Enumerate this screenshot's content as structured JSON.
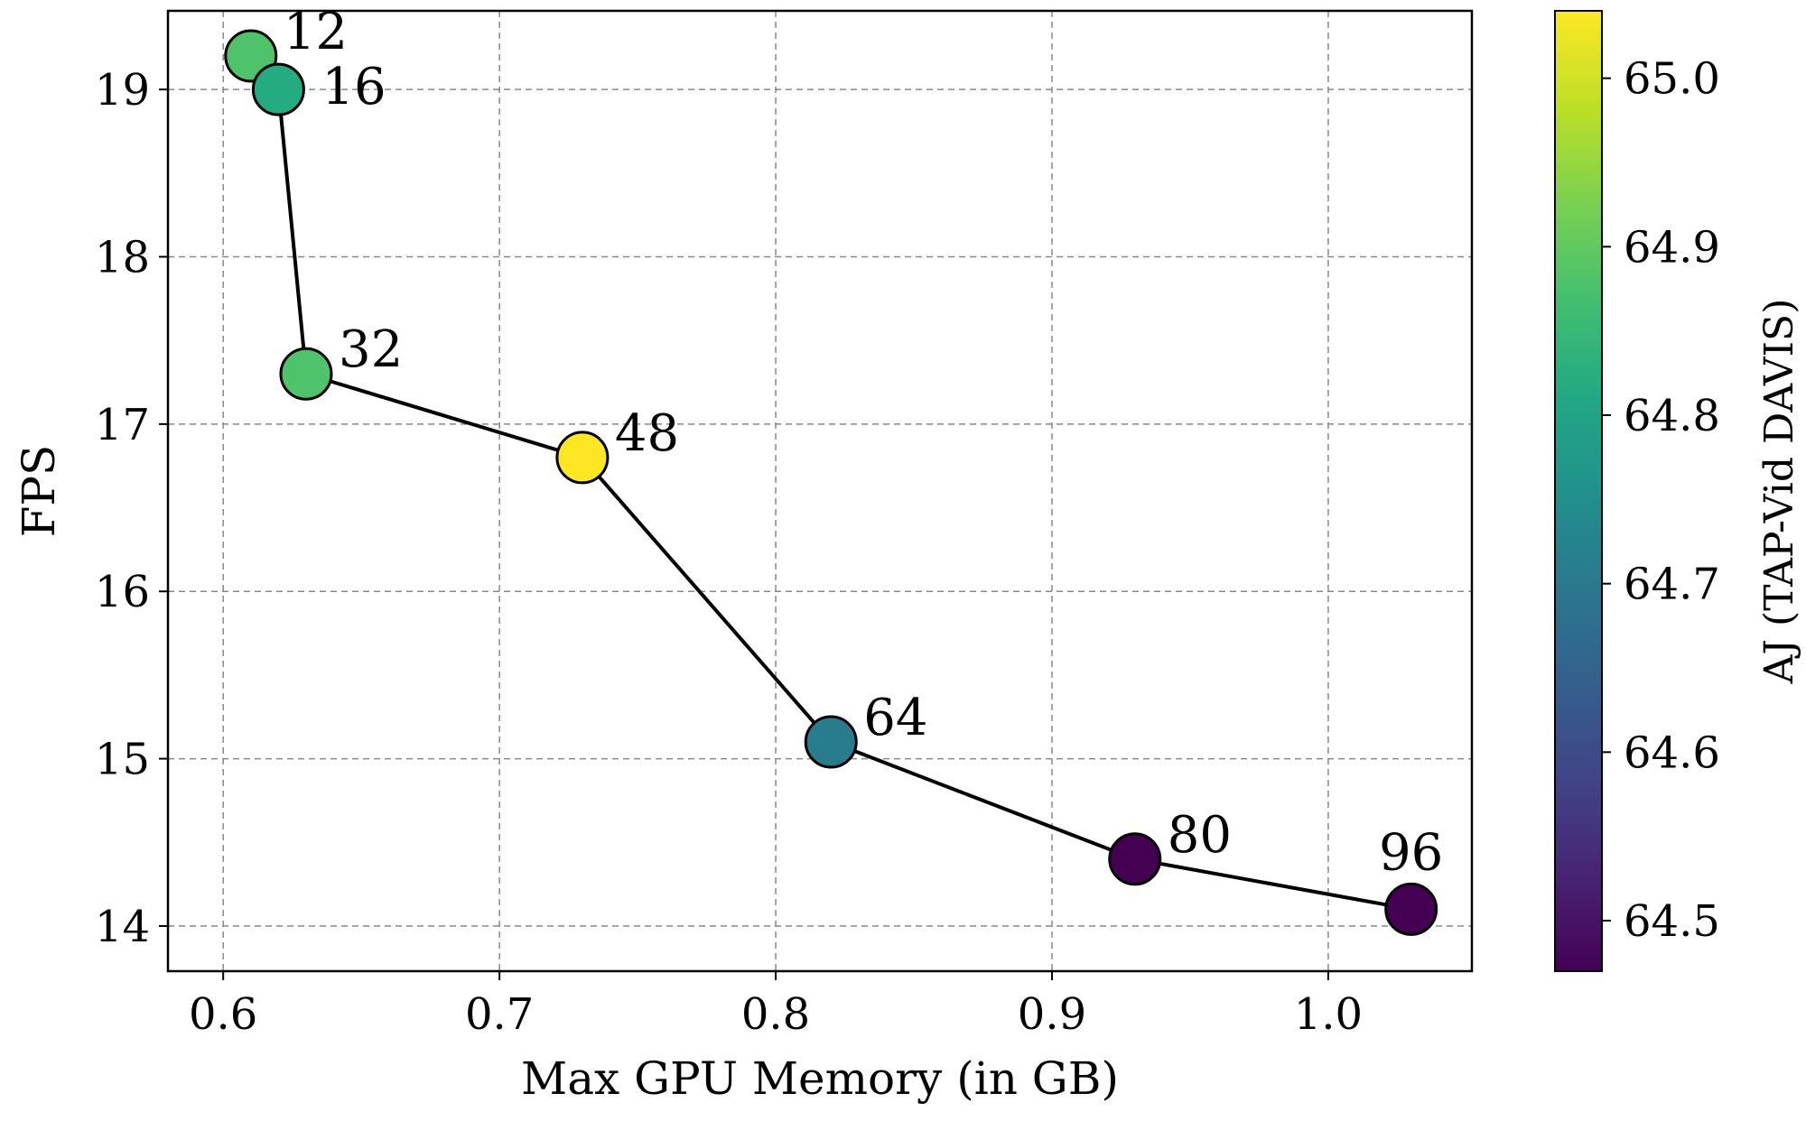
{
  "chart_data": {
    "type": "scatter",
    "xlabel": "Max GPU Memory (in GB)",
    "ylabel": "FPS",
    "xlim": [
      0.58,
      1.052
    ],
    "ylim": [
      13.73,
      19.47
    ],
    "xticks": [
      0.6,
      0.7,
      0.8,
      0.9,
      1.0
    ],
    "xtick_labels": [
      "0.6",
      "0.7",
      "0.8",
      "0.9",
      "1.0"
    ],
    "yticks": [
      14,
      15,
      16,
      17,
      18,
      19
    ],
    "ytick_labels": [
      "14",
      "15",
      "16",
      "17",
      "18",
      "19"
    ],
    "grid": true,
    "connected_line": true,
    "colormap": "viridis",
    "colorbar": {
      "label": "AJ (TAP-Vid DAVIS)",
      "range": [
        64.47,
        65.04
      ],
      "ticks": [
        64.5,
        64.6,
        64.7,
        64.8,
        64.9,
        65.0
      ],
      "tick_labels": [
        "64.5",
        "64.6",
        "64.7",
        "64.8",
        "64.9",
        "65.0"
      ]
    },
    "points": [
      {
        "label": "12",
        "x": 0.61,
        "y": 19.2,
        "aj": 64.9,
        "color": "#4ec36b"
      },
      {
        "label": "16",
        "x": 0.62,
        "y": 19.0,
        "aj": 64.8,
        "color": "#25ab82"
      },
      {
        "label": "32",
        "x": 0.63,
        "y": 17.3,
        "aj": 64.9,
        "color": "#4ec36b"
      },
      {
        "label": "48",
        "x": 0.73,
        "y": 16.8,
        "aj": 65.04,
        "color": "#fde725"
      },
      {
        "label": "64",
        "x": 0.82,
        "y": 15.1,
        "aj": 64.7,
        "color": "#297b8e"
      },
      {
        "label": "80",
        "x": 0.93,
        "y": 14.4,
        "aj": 64.47,
        "color": "#440154"
      },
      {
        "label": "96",
        "x": 1.03,
        "y": 14.1,
        "aj": 64.47,
        "color": "#440154"
      }
    ]
  }
}
